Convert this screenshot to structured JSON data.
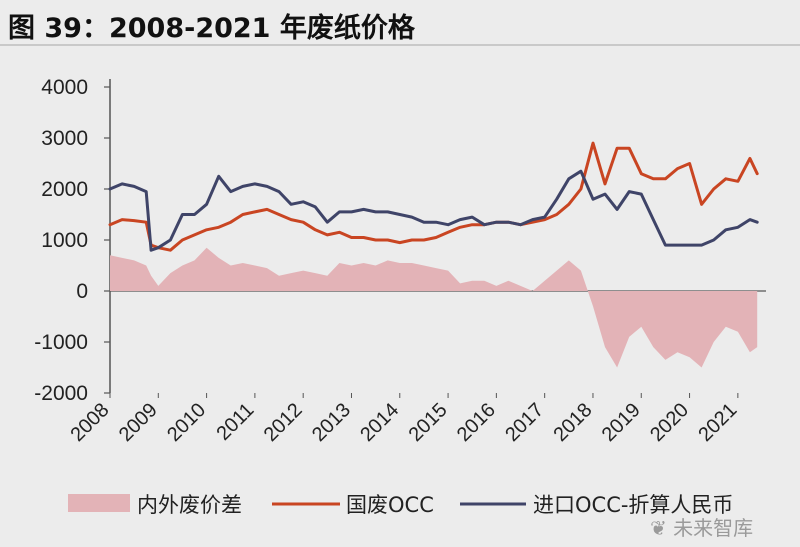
{
  "header": {
    "title": "图 39：2008-2021 年废纸价格"
  },
  "watermark": {
    "text": "未来智库"
  },
  "colors": {
    "diff_fill": "#e3b3b7",
    "domestic_line": "#c94522",
    "import_line": "#3f4468",
    "background": "#ececec",
    "axis": "#555555"
  },
  "chart_data": {
    "type": "line",
    "title": "图 39：2008-2021 年废纸价格",
    "xlabel": "",
    "ylabel": "",
    "ylim": [
      -2000,
      4000
    ],
    "yticks": [
      4000,
      3000,
      2000,
      1000,
      0,
      -1000,
      -2000
    ],
    "xlim": [
      2008.0,
      2021.5
    ],
    "xticks": [
      "2008",
      "2009",
      "2010",
      "2011",
      "2012",
      "2013",
      "2014",
      "2015",
      "2016",
      "2017",
      "2018",
      "2019",
      "2020",
      "2021"
    ],
    "grid": false,
    "legend_position": "bottom",
    "x": [
      2008.0,
      2008.25,
      2008.5,
      2008.75,
      2008.85,
      2009.0,
      2009.25,
      2009.5,
      2009.75,
      2010.0,
      2010.25,
      2010.5,
      2010.75,
      2011.0,
      2011.25,
      2011.5,
      2011.75,
      2012.0,
      2012.25,
      2012.5,
      2012.75,
      2013.0,
      2013.25,
      2013.5,
      2013.75,
      2014.0,
      2014.25,
      2014.5,
      2014.75,
      2015.0,
      2015.25,
      2015.5,
      2015.75,
      2016.0,
      2016.25,
      2016.5,
      2016.75,
      2017.0,
      2017.25,
      2017.5,
      2017.75,
      2018.0,
      2018.25,
      2018.5,
      2018.75,
      2019.0,
      2019.25,
      2019.5,
      2019.75,
      2020.0,
      2020.25,
      2020.5,
      2020.75,
      2021.0,
      2021.25,
      2021.4
    ],
    "series": [
      {
        "name": "内外废价差",
        "kind": "area",
        "values": [
          700,
          650,
          600,
          500,
          300,
          100,
          350,
          500,
          600,
          850,
          650,
          500,
          550,
          500,
          450,
          300,
          350,
          400,
          350,
          300,
          550,
          500,
          550,
          500,
          600,
          550,
          550,
          500,
          450,
          400,
          150,
          200,
          200,
          100,
          200,
          100,
          0,
          200,
          400,
          600,
          400,
          -300,
          -1100,
          -1500,
          -900,
          -700,
          -1100,
          -1350,
          -1200,
          -1300,
          -1500,
          -1000,
          -700,
          -800,
          -1200,
          -1100
        ]
      },
      {
        "name": "国废OCC",
        "kind": "line",
        "values": [
          1300,
          1400,
          1380,
          1350,
          900,
          850,
          800,
          1000,
          1100,
          1200,
          1250,
          1350,
          1500,
          1550,
          1600,
          1500,
          1400,
          1350,
          1200,
          1100,
          1150,
          1050,
          1050,
          1000,
          1000,
          950,
          1000,
          1000,
          1050,
          1150,
          1250,
          1300,
          1300,
          1350,
          1350,
          1300,
          1350,
          1400,
          1500,
          1700,
          2000,
          2900,
          2100,
          2800,
          2800,
          2300,
          2200,
          2200,
          2400,
          2500,
          1700,
          2000,
          2200,
          2150,
          2600,
          2300
        ]
      },
      {
        "name": "进口OCC-折算人民币",
        "kind": "line",
        "values": [
          2000,
          2100,
          2050,
          1950,
          800,
          850,
          1000,
          1500,
          1500,
          1700,
          2250,
          1950,
          2050,
          2100,
          2050,
          1950,
          1700,
          1750,
          1650,
          1350,
          1550,
          1550,
          1600,
          1550,
          1550,
          1500,
          1450,
          1350,
          1350,
          1300,
          1400,
          1450,
          1300,
          1350,
          1350,
          1300,
          1400,
          1450,
          1800,
          2200,
          2350,
          1800,
          1900,
          1600,
          1950,
          1900,
          1400,
          900,
          900,
          900,
          900,
          1000,
          1200,
          1250,
          1400,
          1350
        ]
      }
    ]
  }
}
